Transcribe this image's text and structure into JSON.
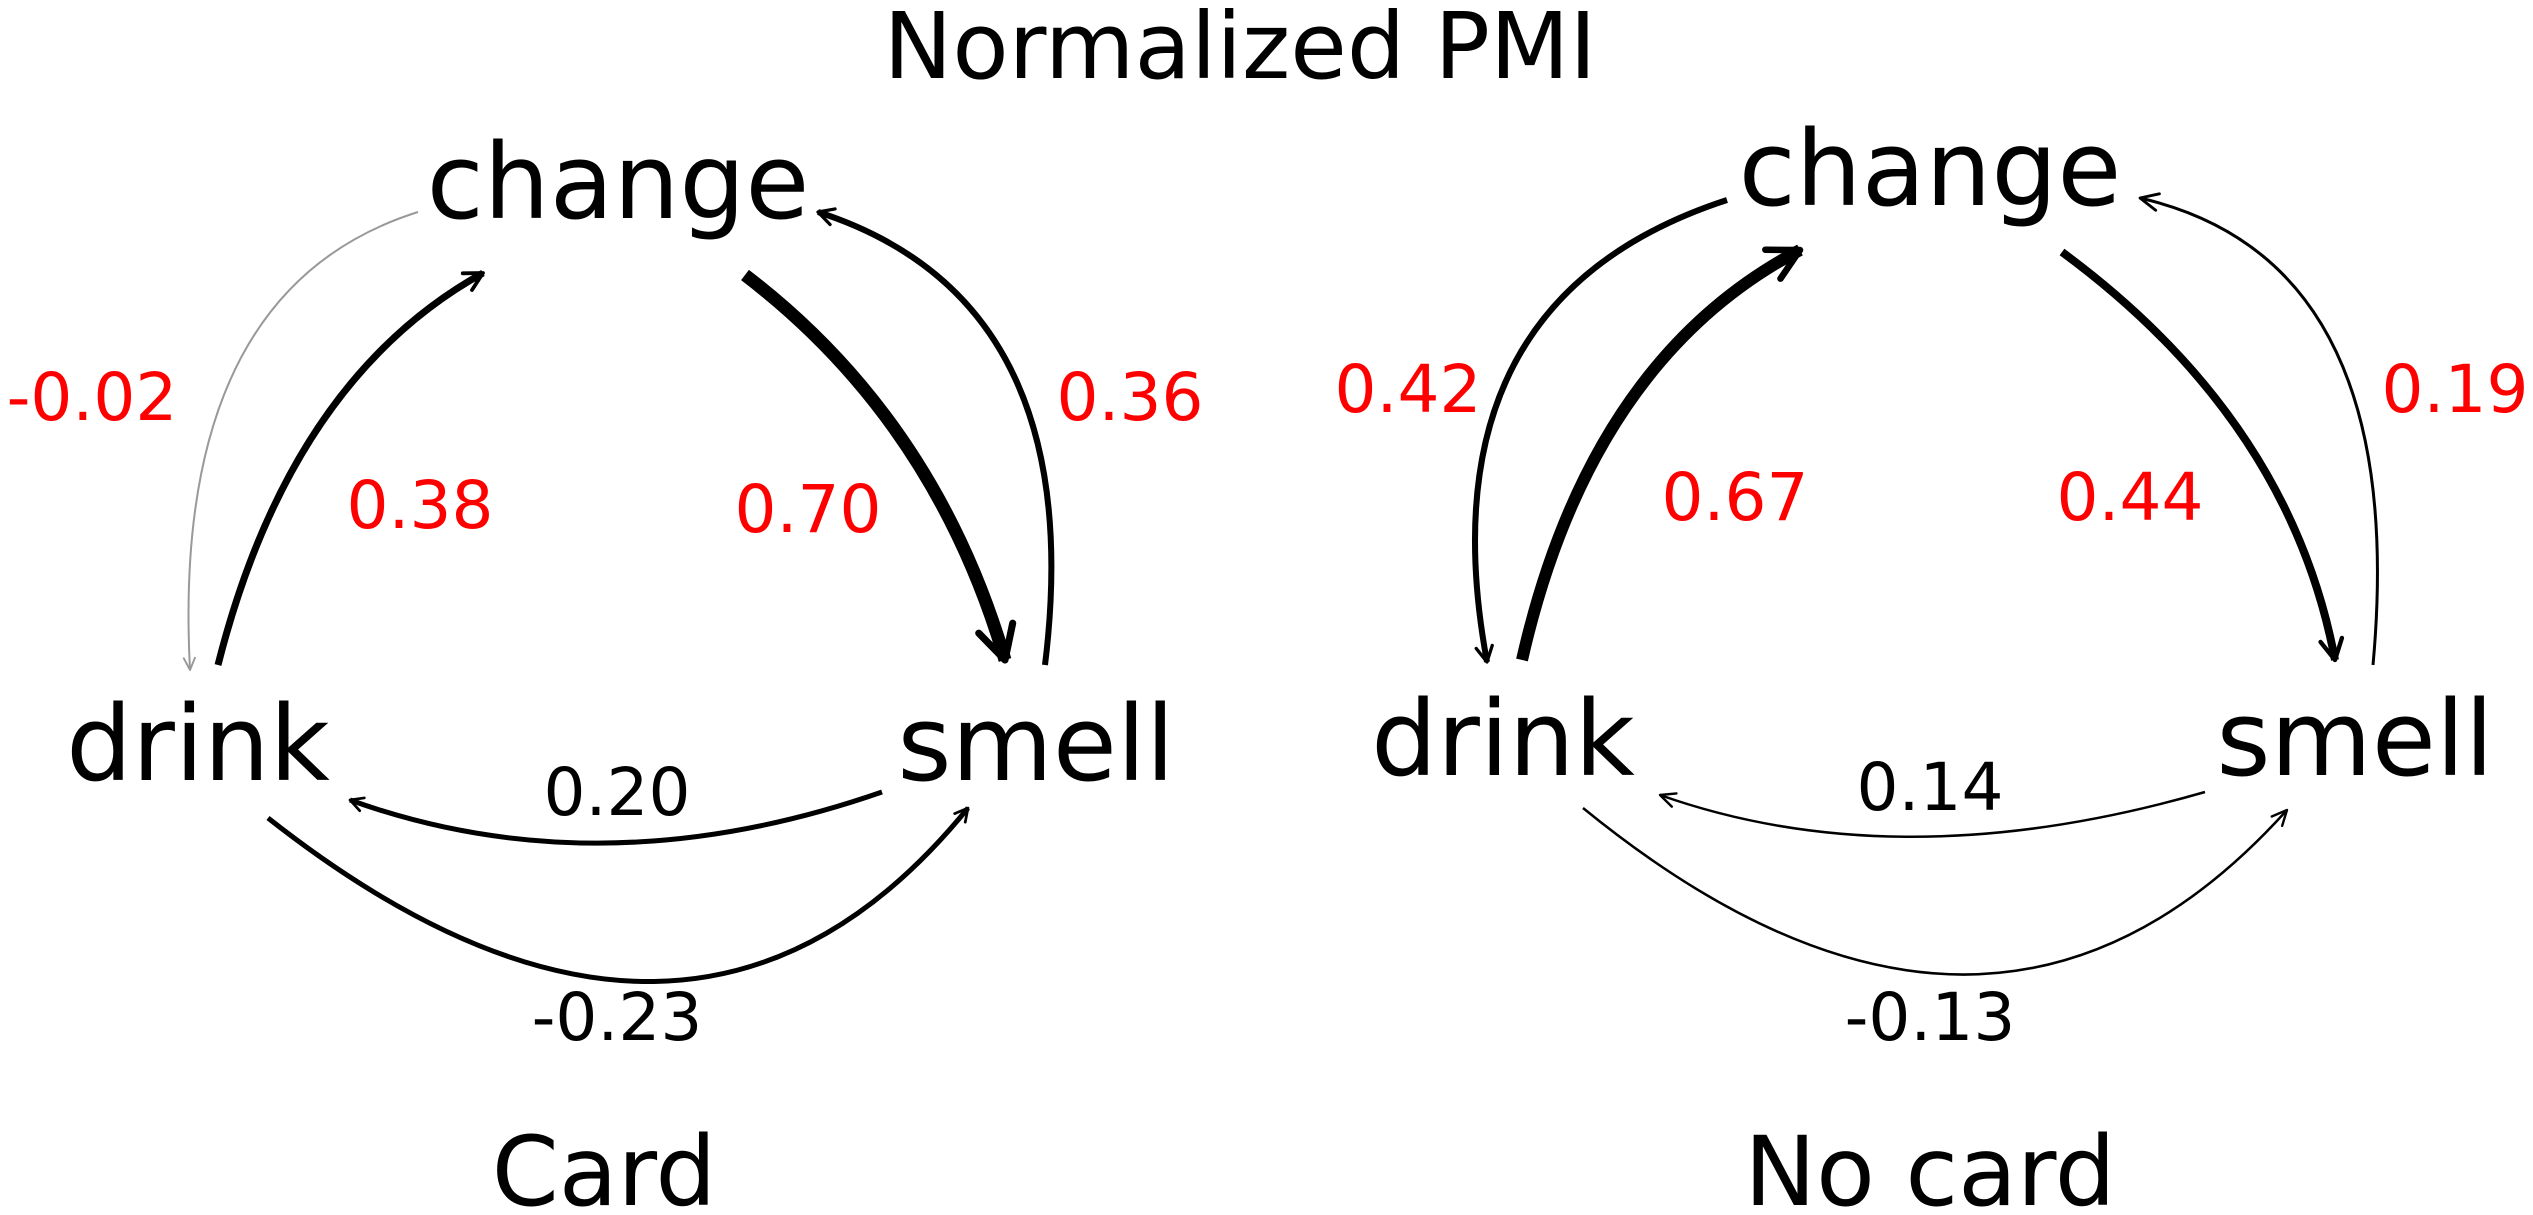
{
  "title": "Normalized PMI",
  "colors": {
    "intra_community": "#ff0000",
    "inter_community": "#000000",
    "ink": "#000000"
  },
  "panels": [
    {
      "label": "Card",
      "nodes": {
        "change": "change",
        "drink": "drink",
        "smell": "smell"
      },
      "edges": [
        {
          "from": "change",
          "to": "drink",
          "weight": "-0.02",
          "value": -0.02,
          "color": "#ff0000"
        },
        {
          "from": "drink",
          "to": "change",
          "weight": "0.38",
          "value": 0.38,
          "color": "#ff0000"
        },
        {
          "from": "change",
          "to": "smell",
          "weight": "0.70",
          "value": 0.7,
          "color": "#ff0000"
        },
        {
          "from": "smell",
          "to": "change",
          "weight": "0.36",
          "value": 0.36,
          "color": "#ff0000"
        },
        {
          "from": "smell",
          "to": "drink",
          "weight": "0.20",
          "value": 0.2,
          "color": "#000000"
        },
        {
          "from": "drink",
          "to": "smell",
          "weight": "-0.23",
          "value": -0.23,
          "color": "#000000"
        }
      ]
    },
    {
      "label": "No card",
      "nodes": {
        "change": "change",
        "drink": "drink",
        "smell": "smell"
      },
      "edges": [
        {
          "from": "change",
          "to": "drink",
          "weight": "0.42",
          "value": 0.42,
          "color": "#ff0000"
        },
        {
          "from": "drink",
          "to": "change",
          "weight": "0.67",
          "value": 0.67,
          "color": "#ff0000"
        },
        {
          "from": "change",
          "to": "smell",
          "weight": "0.44",
          "value": 0.44,
          "color": "#ff0000"
        },
        {
          "from": "smell",
          "to": "change",
          "weight": "0.19",
          "value": 0.19,
          "color": "#ff0000"
        },
        {
          "from": "smell",
          "to": "drink",
          "weight": "0.14",
          "value": 0.14,
          "color": "#000000"
        },
        {
          "from": "drink",
          "to": "smell",
          "weight": "-0.13",
          "value": -0.13,
          "color": "#000000"
        }
      ]
    }
  ]
}
